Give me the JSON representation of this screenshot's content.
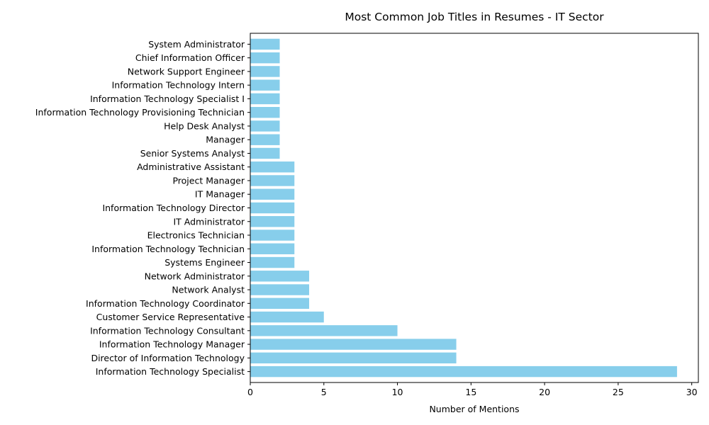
{
  "chart_data": {
    "type": "bar",
    "orientation": "horizontal",
    "title": "Most Common Job Titles in Resumes - IT Sector",
    "xlabel": "Number of Mentions",
    "ylabel": "",
    "xlim": [
      0,
      30.45
    ],
    "xticks": [
      0,
      5,
      10,
      15,
      20,
      25,
      30
    ],
    "grid": false,
    "bar_color": "#87ceeb",
    "categories": [
      "Information Technology Specialist",
      "Director of Information Technology",
      "Information Technology Manager",
      "Information Technology Consultant",
      "Customer Service Representative",
      "Information Technology Coordinator",
      "Network Analyst",
      "Network Administrator",
      "Systems Engineer",
      "Information Technology Technician",
      "Electronics Technician",
      "IT Administrator",
      "Information Technology Director",
      "IT Manager",
      "Project Manager",
      "Administrative Assistant",
      "Senior Systems Analyst",
      "Manager",
      "Help Desk Analyst",
      "Information Technology Provisioning Technician",
      "Information Technology Specialist I",
      "Information Technology Intern",
      "Network Support Engineer",
      "Chief Information Officer",
      "System Administrator"
    ],
    "values": [
      29,
      14,
      14,
      10,
      5,
      4,
      4,
      4,
      3,
      3,
      3,
      3,
      3,
      3,
      3,
      3,
      2,
      2,
      2,
      2,
      2,
      2,
      2,
      2,
      2
    ]
  }
}
